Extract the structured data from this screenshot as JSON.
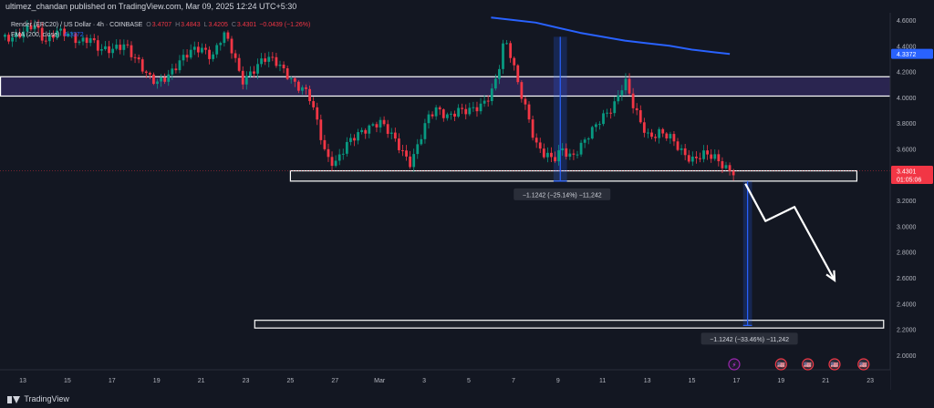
{
  "header": {
    "published": "ultimez_chandan published on TradingView.com, Mar 09, 2025 12:24 UTC+5:30"
  },
  "legend": {
    "title": "Render (ERC20) / US Dollar · 4h · COINBASE",
    "o_label": "O",
    "o_value": "3.4707",
    "h_label": "H",
    "h_value": "3.4843",
    "l_label": "L",
    "l_value": "3.4205",
    "c_label": "C",
    "c_value": "3.4301",
    "change": "−0.0439 (−1.26%)",
    "ema_label": "EMA (200, close)",
    "ema_value": "4.3372"
  },
  "footer": {
    "brand": "TradingView"
  },
  "colors": {
    "background": "#131722",
    "bull": "#089981",
    "bear": "#f23645",
    "ema": "#2962ff",
    "box_fill": "#2a2550",
    "zone_stroke": "#ffffff",
    "measure": "#2962ff"
  },
  "chart_data": {
    "type": "candlestick",
    "symbol": "Render (ERC20) / US Dollar",
    "timeframe": "4h",
    "exchange": "COINBASE",
    "x_ticks": [
      "13",
      "15",
      "17",
      "19",
      "21",
      "23",
      "25",
      "27",
      "Mar",
      "3",
      "5",
      "7",
      "9",
      "11",
      "13",
      "15",
      "17",
      "19",
      "21",
      "23"
    ],
    "y_ticks": [
      "4.6000",
      "4.4000",
      "4.2000",
      "4.0000",
      "3.8000",
      "3.6000",
      "3.4000",
      "3.2000",
      "3.0000",
      "2.8000",
      "2.6000",
      "2.4000",
      "2.2000",
      "2.0000"
    ],
    "ylim": [
      1.95,
      4.66
    ],
    "price_labels": [
      {
        "name": "ema-price-label",
        "price": 4.3372,
        "text": "4.3372",
        "color": "#2962ff"
      },
      {
        "name": "last-price-label",
        "price": 3.4301,
        "text": "3.4301",
        "sub": "01:05:06",
        "color": "#f23645"
      }
    ],
    "close_path": [
      {
        "d": -0.8,
        "p": 4.47
      },
      {
        "d": 0,
        "p": 4.5
      },
      {
        "d": 0.5,
        "p": 4.55
      },
      {
        "d": 1.0,
        "p": 4.44
      },
      {
        "d": 1.5,
        "p": 4.53
      },
      {
        "d": 2.0,
        "p": 4.48
      },
      {
        "d": 2.5,
        "p": 4.42
      },
      {
        "d": 3.0,
        "p": 4.48
      },
      {
        "d": 3.5,
        "p": 4.37
      },
      {
        "d": 4.0,
        "p": 4.35
      },
      {
        "d": 4.6,
        "p": 4.42
      },
      {
        "d": 5.2,
        "p": 4.28
      },
      {
        "d": 5.6,
        "p": 4.15
      },
      {
        "d": 6.0,
        "p": 4.1
      },
      {
        "d": 6.5,
        "p": 4.18
      },
      {
        "d": 7.0,
        "p": 4.28
      },
      {
        "d": 7.5,
        "p": 4.34
      },
      {
        "d": 8.0,
        "p": 4.38
      },
      {
        "d": 8.5,
        "p": 4.33
      },
      {
        "d": 9.0,
        "p": 4.5
      },
      {
        "d": 9.5,
        "p": 4.3
      },
      {
        "d": 9.8,
        "p": 4.12
      },
      {
        "d": 10.3,
        "p": 4.22
      },
      {
        "d": 10.8,
        "p": 4.3
      },
      {
        "d": 11.3,
        "p": 4.27
      },
      {
        "d": 11.8,
        "p": 4.2
      },
      {
        "d": 12.3,
        "p": 4.1
      },
      {
        "d": 12.8,
        "p": 4.02
      },
      {
        "d": 13.2,
        "p": 3.8
      },
      {
        "d": 13.6,
        "p": 3.55
      },
      {
        "d": 14.0,
        "p": 3.5
      },
      {
        "d": 14.5,
        "p": 3.62
      },
      {
        "d": 15.0,
        "p": 3.7
      },
      {
        "d": 15.5,
        "p": 3.78
      },
      {
        "d": 16.0,
        "p": 3.82
      },
      {
        "d": 16.5,
        "p": 3.7
      },
      {
        "d": 17.0,
        "p": 3.58
      },
      {
        "d": 17.4,
        "p": 3.5
      },
      {
        "d": 17.8,
        "p": 3.68
      },
      {
        "d": 18.2,
        "p": 3.84
      },
      {
        "d": 18.6,
        "p": 3.9
      },
      {
        "d": 19.0,
        "p": 3.86
      },
      {
        "d": 19.5,
        "p": 3.91
      },
      {
        "d": 20.0,
        "p": 3.88
      },
      {
        "d": 20.5,
        "p": 3.92
      },
      {
        "d": 21.0,
        "p": 4.05
      },
      {
        "d": 21.3,
        "p": 4.2
      },
      {
        "d": 21.6,
        "p": 4.45
      },
      {
        "d": 21.9,
        "p": 4.3
      },
      {
        "d": 22.2,
        "p": 4.1
      },
      {
        "d": 22.6,
        "p": 3.9
      },
      {
        "d": 23.0,
        "p": 3.65
      },
      {
        "d": 23.4,
        "p": 3.55
      },
      {
        "d": 23.8,
        "p": 3.5
      },
      {
        "d": 24.2,
        "p": 3.6
      },
      {
        "d": 24.6,
        "p": 3.55
      },
      {
        "d": 25.0,
        "p": 3.62
      },
      {
        "d": 25.5,
        "p": 3.72
      },
      {
        "d": 26.0,
        "p": 3.85
      },
      {
        "d": 26.5,
        "p": 3.95
      },
      {
        "d": 27.0,
        "p": 4.13
      },
      {
        "d": 27.3,
        "p": 3.95
      },
      {
        "d": 27.7,
        "p": 3.8
      },
      {
        "d": 28.1,
        "p": 3.7
      },
      {
        "d": 28.5,
        "p": 3.74
      },
      {
        "d": 29.0,
        "p": 3.68
      },
      {
        "d": 29.5,
        "p": 3.58
      },
      {
        "d": 30.0,
        "p": 3.53
      },
      {
        "d": 30.5,
        "p": 3.56
      },
      {
        "d": 31.0,
        "p": 3.52
      },
      {
        "d": 31.5,
        "p": 3.46
      },
      {
        "d": 32.0,
        "p": 3.43
      }
    ],
    "ema_200": [
      {
        "d": 21.0,
        "p": 4.62
      },
      {
        "d": 22.0,
        "p": 4.6
      },
      {
        "d": 23.0,
        "p": 4.58
      },
      {
        "d": 24.0,
        "p": 4.54
      },
      {
        "d": 25.0,
        "p": 4.5
      },
      {
        "d": 26.0,
        "p": 4.47
      },
      {
        "d": 27.0,
        "p": 4.44
      },
      {
        "d": 28.0,
        "p": 4.42
      },
      {
        "d": 29.0,
        "p": 4.4
      },
      {
        "d": 30.0,
        "p": 4.37
      },
      {
        "d": 31.0,
        "p": 4.35
      },
      {
        "d": 31.7,
        "p": 4.3372
      }
    ],
    "zones": [
      {
        "name": "resistance-zone",
        "d0": -1.0,
        "d1": 39.0,
        "p_top": 4.16,
        "p_bot": 4.01,
        "filled": true
      },
      {
        "name": "support-zone",
        "d0": 12.0,
        "d1": 37.4,
        "p_top": 3.43,
        "p_bot": 3.35,
        "filled": false
      },
      {
        "name": "target-zone",
        "d0": 10.4,
        "d1": 38.6,
        "p_top": 2.27,
        "p_bot": 2.21,
        "filled": false
      }
    ],
    "measurements": [
      {
        "name": "measure-drop-1",
        "d0": 23.8,
        "d1": 24.4,
        "p_from": 4.47,
        "p_to": 3.35,
        "label": "−1.1242 (−25.14%) −11,242"
      },
      {
        "name": "measure-drop-2",
        "d0": 32.3,
        "d1": 32.7,
        "p_from": 3.35,
        "p_to": 2.23,
        "label": "−1.1242 (−33.46%) −11,242"
      }
    ],
    "projection_path": [
      {
        "d": 32.4,
        "p": 3.33
      },
      {
        "d": 33.3,
        "p": 3.04
      },
      {
        "d": 34.6,
        "p": 3.15
      },
      {
        "d": 36.4,
        "p": 2.58
      }
    ],
    "events": [
      {
        "name": "dividend-event-icon",
        "d": 31.9,
        "glyph": "⚡"
      },
      {
        "name": "economic-event-1",
        "d": 34.0,
        "glyph": "🇺🇸"
      },
      {
        "name": "economic-event-2",
        "d": 35.2,
        "glyph": "🇺🇸"
      },
      {
        "name": "economic-event-3",
        "d": 36.4,
        "glyph": "🇺🇸"
      },
      {
        "name": "economic-event-4",
        "d": 37.7,
        "glyph": "🇺🇸"
      }
    ]
  }
}
